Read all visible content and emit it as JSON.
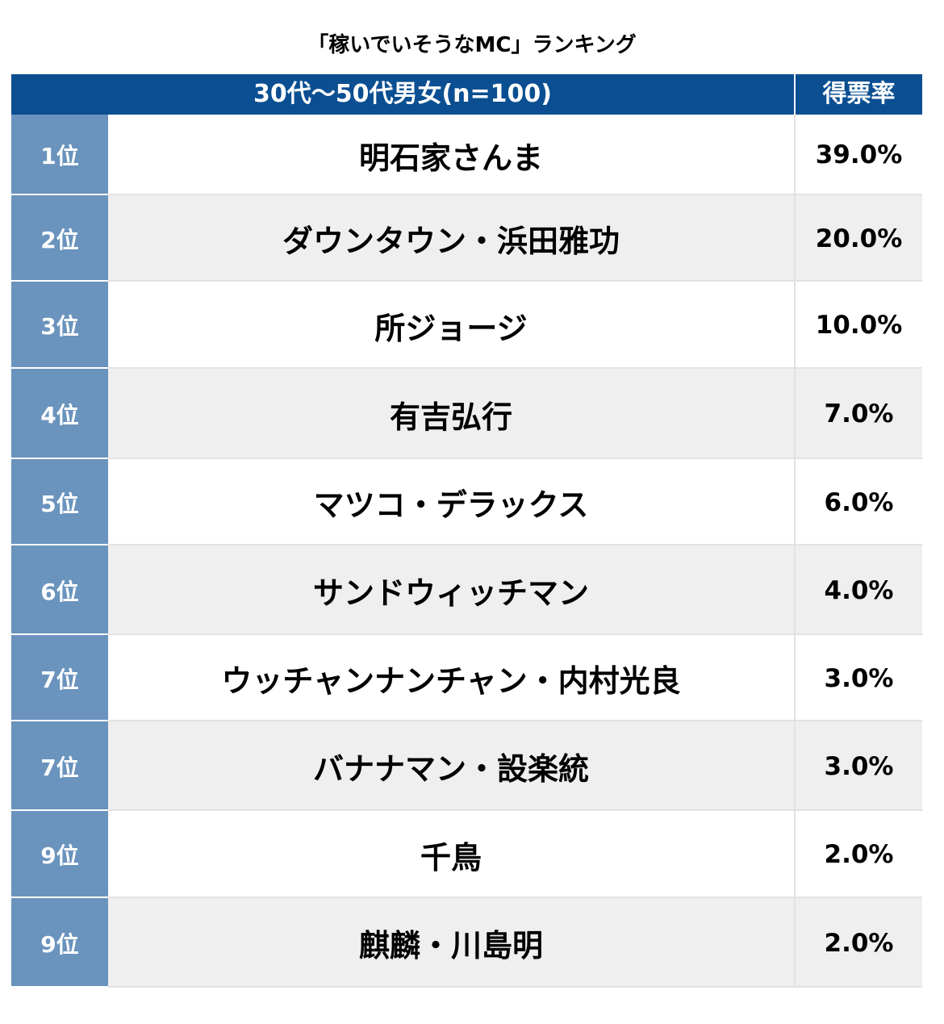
{
  "chart_data": {
    "type": "table",
    "title": "「稼いでいそうなMC」ランキング",
    "group_header": "30代〜50代男女(n=100)",
    "rate_header": "得票率",
    "rows": [
      {
        "rank": "1位",
        "name": "明石家さんま",
        "value": 39.0,
        "label": "39.0%"
      },
      {
        "rank": "2位",
        "name": "ダウンタウン・浜田雅功",
        "value": 20.0,
        "label": "20.0%"
      },
      {
        "rank": "3位",
        "name": "所ジョージ",
        "value": 10.0,
        "label": "10.0%"
      },
      {
        "rank": "4位",
        "name": "有吉弘行",
        "value": 7.0,
        "label": "7.0%"
      },
      {
        "rank": "5位",
        "name": "マツコ・デラックス",
        "value": 6.0,
        "label": "6.0%"
      },
      {
        "rank": "6位",
        "name": "サンドウィッチマン",
        "value": 4.0,
        "label": "4.0%"
      },
      {
        "rank": "7位",
        "name": "ウッチャンナンチャン・内村光良",
        "value": 3.0,
        "label": "3.0%"
      },
      {
        "rank": "7位",
        "name": "バナナマン・設楽統",
        "value": 3.0,
        "label": "3.0%"
      },
      {
        "rank": "9位",
        "name": "千鳥",
        "value": 2.0,
        "label": "2.0%"
      },
      {
        "rank": "9位",
        "name": "麒麟・川島明",
        "value": 2.0,
        "label": "2.0%"
      }
    ]
  },
  "colors": {
    "header_bg": "#0b4f92",
    "rank_bg": "#6a93bd",
    "row_alt_bg": "#efefef"
  }
}
